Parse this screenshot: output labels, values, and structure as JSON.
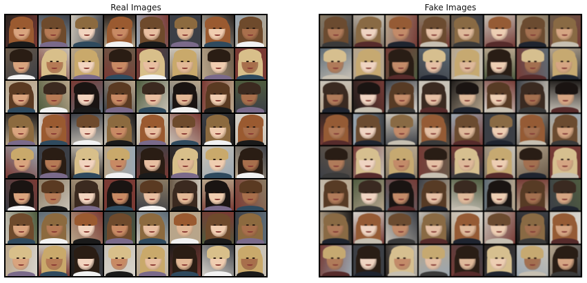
{
  "panels": [
    {
      "id": "real",
      "title": "Real Images"
    },
    {
      "id": "fake",
      "title": "Fake Images"
    }
  ],
  "grid": {
    "rows": 8,
    "cols": 8
  },
  "colors": {
    "grid_border": "#000000",
    "title_text": "#111111",
    "backgrounds": [
      "#6b5a48",
      "#2b2420",
      "#c9c2b6",
      "#5d6b76",
      "#8a7a62",
      "#3c3f46",
      "#d8d4cc",
      "#4e5b3e",
      "#7a3a34",
      "#9aa7b2",
      "#1f1c1a",
      "#b8a58a"
    ],
    "skins": [
      "#e2b896",
      "#d9a47e",
      "#c88a64",
      "#f0cdb0",
      "#b57a55",
      "#e8bfa1",
      "#a86f4c",
      "#f2d4bf"
    ],
    "hairs": [
      "#2a1d14",
      "#5a3a22",
      "#8c6a3f",
      "#c9a96b",
      "#1a1412",
      "#6e4a2c",
      "#d8bf8a",
      "#3b2a20",
      "#9a5a30"
    ],
    "shirts": [
      "#1e2430",
      "#f2f2f2",
      "#5a2a2a",
      "#2f4a5e",
      "#3a3a3a",
      "#7a6a8a",
      "#c8c0b0",
      "#1a1a1a"
    ]
  }
}
